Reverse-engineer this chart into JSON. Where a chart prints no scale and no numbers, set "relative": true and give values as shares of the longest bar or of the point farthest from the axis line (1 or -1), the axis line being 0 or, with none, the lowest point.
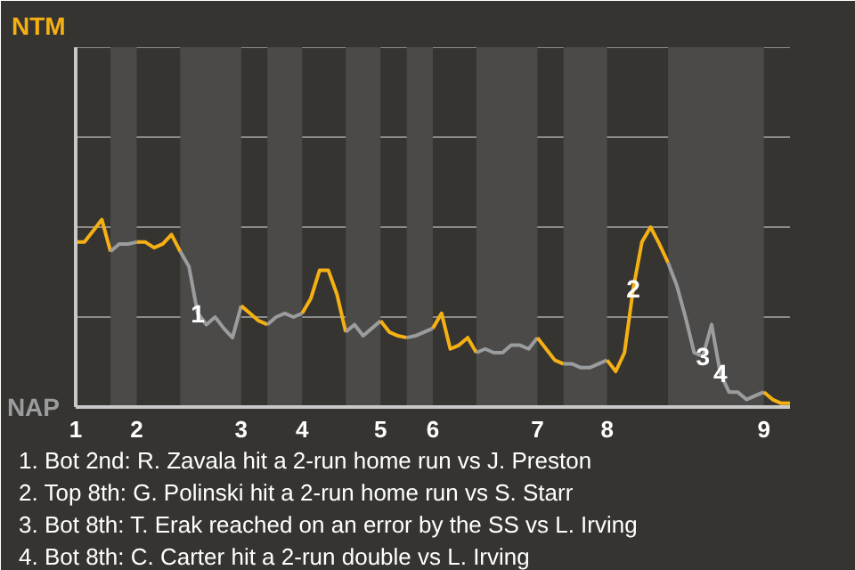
{
  "chart_data": {
    "type": "line",
    "relative": true,
    "categories": [
      "1",
      null,
      null,
      null,
      null,
      null,
      null,
      "2",
      null,
      null,
      null,
      null,
      null,
      null,
      null,
      null,
      null,
      null,
      null,
      "3",
      null,
      null,
      null,
      null,
      null,
      null,
      "4",
      null,
      null,
      null,
      null,
      null,
      null,
      null,
      null,
      "5",
      null,
      null,
      null,
      null,
      null,
      "6",
      null,
      null,
      null,
      null,
      null,
      null,
      null,
      null,
      null,
      null,
      null,
      "7",
      null,
      null,
      null,
      null,
      null,
      null,
      null,
      "8",
      null,
      null,
      null,
      null,
      null,
      null,
      null,
      null,
      null,
      null,
      null,
      null,
      null,
      null,
      null,
      null,
      null,
      "9",
      null,
      null,
      null
    ],
    "marker": "none",
    "line_style": "solid",
    "ref_lines": [
      {
        "axis": "y",
        "value": 0.48,
        "color": "#8c8c8c"
      },
      {
        "axis": "y",
        "value": 0.96,
        "color": "#8c8c8c"
      },
      {
        "axis": "y",
        "value": 1.44,
        "color": "#8c8c8c"
      },
      {
        "axis": "y",
        "value": 1.92,
        "color": "#8c8c8c"
      }
    ],
    "series": [
      {
        "name": "NTM",
        "color": "#f5b014",
        "values": [
          0.88,
          0.88,
          0.94,
          1.0,
          0.83,
          null,
          null,
          null,
          null,
          null,
          null,
          null,
          null,
          null,
          null,
          null,
          null,
          null,
          null,
          null,
          null,
          null,
          null,
          null,
          null,
          null,
          null,
          null,
          null,
          null,
          null,
          null,
          null,
          null,
          null,
          null,
          null,
          null,
          null,
          null,
          null,
          null,
          null,
          null,
          null,
          null,
          null,
          null,
          null,
          null,
          null,
          null,
          null,
          null,
          null,
          null,
          null,
          null,
          null,
          null,
          null,
          null,
          null,
          null,
          null,
          null,
          null,
          null,
          null,
          null,
          null,
          null,
          null,
          null,
          null,
          null,
          null,
          null,
          null,
          null,
          null,
          null,
          null
        ]
      },
      {
        "name": "NAP",
        "color": "#9a9c9e",
        "values": [
          null,
          null,
          null,
          null,
          0.83,
          0.87,
          0.87,
          0.88,
          null,
          null,
          null,
          null,
          null,
          null,
          null,
          null,
          null,
          null,
          null,
          null,
          null,
          null,
          null,
          null,
          null,
          null,
          null,
          null,
          null,
          null,
          null,
          null,
          null,
          null,
          null,
          null,
          null,
          null,
          null,
          null,
          null,
          null,
          null,
          null,
          null,
          null,
          null,
          null,
          null,
          null,
          null,
          null,
          null,
          null,
          null,
          null,
          null,
          null,
          null,
          null,
          null,
          null,
          null,
          null,
          null,
          null,
          null,
          null,
          null,
          null,
          null,
          null,
          null,
          null,
          null,
          null,
          null,
          null,
          null,
          null,
          null,
          null,
          null
        ]
      },
      {
        "color": "#f5b014",
        "values": [
          null,
          null,
          null,
          null,
          null,
          null,
          null,
          0.88,
          0.88,
          0.85,
          0.87,
          0.92,
          0.83,
          null,
          null,
          null,
          null,
          null,
          null,
          null,
          null,
          null,
          null,
          null,
          null,
          null,
          null,
          null,
          null,
          null,
          null,
          null,
          null,
          null,
          null,
          null,
          null,
          null,
          null,
          null,
          null,
          null,
          null,
          null,
          null,
          null,
          null,
          null,
          null,
          null,
          null,
          null,
          null,
          null,
          null,
          null,
          null,
          null,
          null,
          null,
          null,
          null,
          null,
          null,
          null,
          null,
          null,
          null,
          null,
          null,
          null,
          null,
          null,
          null,
          null,
          null,
          null,
          null,
          null,
          null,
          null,
          null,
          null
        ]
      },
      {
        "color": "#9a9c9e",
        "values": [
          null,
          null,
          null,
          null,
          null,
          null,
          null,
          null,
          null,
          null,
          null,
          null,
          0.83,
          0.75,
          0.5,
          0.44,
          0.48,
          0.42,
          0.37,
          0.54,
          null,
          null,
          null,
          null,
          null,
          null,
          null,
          null,
          null,
          null,
          null,
          null,
          null,
          null,
          null,
          null,
          null,
          null,
          null,
          null,
          null,
          null,
          null,
          null,
          null,
          null,
          null,
          null,
          null,
          null,
          null,
          null,
          null,
          null,
          null,
          null,
          null,
          null,
          null,
          null,
          null,
          null,
          null,
          null,
          null,
          null,
          null,
          null,
          null,
          null,
          null,
          null,
          null,
          null,
          null,
          null,
          null,
          null,
          null,
          null,
          null,
          null,
          null
        ]
      },
      {
        "color": "#f5b014",
        "values": [
          null,
          null,
          null,
          null,
          null,
          null,
          null,
          null,
          null,
          null,
          null,
          null,
          null,
          null,
          null,
          null,
          null,
          null,
          null,
          0.54,
          0.5,
          0.46,
          0.44,
          null,
          null,
          null,
          null,
          null,
          null,
          null,
          null,
          null,
          null,
          null,
          null,
          null,
          null,
          null,
          null,
          null,
          null,
          null,
          null,
          null,
          null,
          null,
          null,
          null,
          null,
          null,
          null,
          null,
          null,
          null,
          null,
          null,
          null,
          null,
          null,
          null,
          null,
          null,
          null,
          null,
          null,
          null,
          null,
          null,
          null,
          null,
          null,
          null,
          null,
          null,
          null,
          null,
          null,
          null,
          null,
          null,
          null,
          null,
          null
        ]
      },
      {
        "color": "#9a9c9e",
        "values": [
          null,
          null,
          null,
          null,
          null,
          null,
          null,
          null,
          null,
          null,
          null,
          null,
          null,
          null,
          null,
          null,
          null,
          null,
          null,
          null,
          null,
          null,
          0.44,
          0.48,
          0.5,
          0.48,
          0.5,
          null,
          null,
          null,
          null,
          null,
          null,
          null,
          null,
          null,
          null,
          null,
          null,
          null,
          null,
          null,
          null,
          null,
          null,
          null,
          null,
          null,
          null,
          null,
          null,
          null,
          null,
          null,
          null,
          null,
          null,
          null,
          null,
          null,
          null,
          null,
          null,
          null,
          null,
          null,
          null,
          null,
          null,
          null,
          null,
          null,
          null,
          null,
          null,
          null,
          null,
          null,
          null,
          null,
          null,
          null,
          null
        ]
      },
      {
        "color": "#f5b014",
        "values": [
          null,
          null,
          null,
          null,
          null,
          null,
          null,
          null,
          null,
          null,
          null,
          null,
          null,
          null,
          null,
          null,
          null,
          null,
          null,
          null,
          null,
          null,
          null,
          null,
          null,
          null,
          0.5,
          0.58,
          0.73,
          0.73,
          0.6,
          0.4,
          null,
          null,
          null,
          null,
          null,
          null,
          null,
          null,
          null,
          null,
          null,
          null,
          null,
          null,
          null,
          null,
          null,
          null,
          null,
          null,
          null,
          null,
          null,
          null,
          null,
          null,
          null,
          null,
          null,
          null,
          null,
          null,
          null,
          null,
          null,
          null,
          null,
          null,
          null,
          null,
          null,
          null,
          null,
          null,
          null,
          null,
          null,
          null,
          null,
          null,
          null
        ]
      },
      {
        "color": "#9a9c9e",
        "values": [
          null,
          null,
          null,
          null,
          null,
          null,
          null,
          null,
          null,
          null,
          null,
          null,
          null,
          null,
          null,
          null,
          null,
          null,
          null,
          null,
          null,
          null,
          null,
          null,
          null,
          null,
          null,
          null,
          null,
          null,
          null,
          0.4,
          0.44,
          0.38,
          0.42,
          0.46,
          null,
          null,
          null,
          null,
          null,
          null,
          null,
          null,
          null,
          null,
          null,
          null,
          null,
          null,
          null,
          null,
          null,
          null,
          null,
          null,
          null,
          null,
          null,
          null,
          null,
          null,
          null,
          null,
          null,
          null,
          null,
          null,
          null,
          null,
          null,
          null,
          null,
          null,
          null,
          null,
          null,
          null,
          null,
          null,
          null,
          null,
          null
        ]
      },
      {
        "color": "#f5b014",
        "values": [
          null,
          null,
          null,
          null,
          null,
          null,
          null,
          null,
          null,
          null,
          null,
          null,
          null,
          null,
          null,
          null,
          null,
          null,
          null,
          null,
          null,
          null,
          null,
          null,
          null,
          null,
          null,
          null,
          null,
          null,
          null,
          null,
          null,
          null,
          null,
          0.46,
          0.4,
          0.38,
          0.37,
          null,
          null,
          null,
          null,
          null,
          null,
          null,
          null,
          null,
          null,
          null,
          null,
          null,
          null,
          null,
          null,
          null,
          null,
          null,
          null,
          null,
          null,
          null,
          null,
          null,
          null,
          null,
          null,
          null,
          null,
          null,
          null,
          null,
          null,
          null,
          null,
          null,
          null,
          null,
          null,
          null,
          null,
          null,
          null
        ]
      },
      {
        "color": "#9a9c9e",
        "values": [
          null,
          null,
          null,
          null,
          null,
          null,
          null,
          null,
          null,
          null,
          null,
          null,
          null,
          null,
          null,
          null,
          null,
          null,
          null,
          null,
          null,
          null,
          null,
          null,
          null,
          null,
          null,
          null,
          null,
          null,
          null,
          null,
          null,
          null,
          null,
          null,
          null,
          null,
          0.37,
          0.38,
          0.4,
          0.42,
          null,
          null,
          null,
          null,
          null,
          null,
          null,
          null,
          null,
          null,
          null,
          null,
          null,
          null,
          null,
          null,
          null,
          null,
          null,
          null,
          null,
          null,
          null,
          null,
          null,
          null,
          null,
          null,
          null,
          null,
          null,
          null,
          null,
          null,
          null,
          null,
          null,
          null,
          null,
          null,
          null
        ]
      },
      {
        "color": "#f5b014",
        "values": [
          null,
          null,
          null,
          null,
          null,
          null,
          null,
          null,
          null,
          null,
          null,
          null,
          null,
          null,
          null,
          null,
          null,
          null,
          null,
          null,
          null,
          null,
          null,
          null,
          null,
          null,
          null,
          null,
          null,
          null,
          null,
          null,
          null,
          null,
          null,
          null,
          null,
          null,
          null,
          null,
          null,
          0.42,
          0.5,
          0.31,
          0.33,
          0.37,
          0.29,
          null,
          null,
          null,
          null,
          null,
          null,
          null,
          null,
          null,
          null,
          null,
          null,
          null,
          null,
          null,
          null,
          null,
          null,
          null,
          null,
          null,
          null,
          null,
          null,
          null,
          null,
          null,
          null,
          null,
          null,
          null,
          null,
          null,
          null,
          null,
          null
        ]
      },
      {
        "color": "#9a9c9e",
        "values": [
          null,
          null,
          null,
          null,
          null,
          null,
          null,
          null,
          null,
          null,
          null,
          null,
          null,
          null,
          null,
          null,
          null,
          null,
          null,
          null,
          null,
          null,
          null,
          null,
          null,
          null,
          null,
          null,
          null,
          null,
          null,
          null,
          null,
          null,
          null,
          null,
          null,
          null,
          null,
          null,
          null,
          null,
          null,
          null,
          null,
          null,
          0.29,
          0.31,
          0.29,
          0.29,
          0.33,
          0.33,
          0.31,
          0.37,
          null,
          null,
          null,
          null,
          null,
          null,
          null,
          null,
          null,
          null,
          null,
          null,
          null,
          null,
          null,
          null,
          null,
          null,
          null,
          null,
          null,
          null,
          null,
          null,
          null,
          null,
          null,
          null,
          null
        ]
      },
      {
        "color": "#f5b014",
        "values": [
          null,
          null,
          null,
          null,
          null,
          null,
          null,
          null,
          null,
          null,
          null,
          null,
          null,
          null,
          null,
          null,
          null,
          null,
          null,
          null,
          null,
          null,
          null,
          null,
          null,
          null,
          null,
          null,
          null,
          null,
          null,
          null,
          null,
          null,
          null,
          null,
          null,
          null,
          null,
          null,
          null,
          null,
          null,
          null,
          null,
          null,
          null,
          null,
          null,
          null,
          null,
          null,
          null,
          0.37,
          0.31,
          0.25,
          0.23,
          null,
          null,
          null,
          null,
          null,
          null,
          null,
          null,
          null,
          null,
          null,
          null,
          null,
          null,
          null,
          null,
          null,
          null,
          null,
          null,
          null,
          null,
          null,
          null,
          null,
          null
        ]
      },
      {
        "color": "#9a9c9e",
        "values": [
          null,
          null,
          null,
          null,
          null,
          null,
          null,
          null,
          null,
          null,
          null,
          null,
          null,
          null,
          null,
          null,
          null,
          null,
          null,
          null,
          null,
          null,
          null,
          null,
          null,
          null,
          null,
          null,
          null,
          null,
          null,
          null,
          null,
          null,
          null,
          null,
          null,
          null,
          null,
          null,
          null,
          null,
          null,
          null,
          null,
          null,
          null,
          null,
          null,
          null,
          null,
          null,
          null,
          null,
          null,
          null,
          0.23,
          0.23,
          0.21,
          0.21,
          0.23,
          0.25,
          null,
          null,
          null,
          null,
          null,
          null,
          null,
          null,
          null,
          null,
          null,
          null,
          null,
          null,
          null,
          null,
          null,
          null,
          null,
          null,
          null
        ]
      },
      {
        "color": "#f5b014",
        "values": [
          null,
          null,
          null,
          null,
          null,
          null,
          null,
          null,
          null,
          null,
          null,
          null,
          null,
          null,
          null,
          null,
          null,
          null,
          null,
          null,
          null,
          null,
          null,
          null,
          null,
          null,
          null,
          null,
          null,
          null,
          null,
          null,
          null,
          null,
          null,
          null,
          null,
          null,
          null,
          null,
          null,
          null,
          null,
          null,
          null,
          null,
          null,
          null,
          null,
          null,
          null,
          null,
          null,
          null,
          null,
          null,
          null,
          null,
          null,
          null,
          null,
          0.25,
          0.19,
          0.29,
          0.63,
          0.88,
          0.96,
          0.87,
          0.77,
          null,
          null,
          null,
          null,
          null,
          null,
          null,
          null,
          null,
          null,
          null,
          null,
          null,
          null
        ]
      },
      {
        "color": "#9a9c9e",
        "values": [
          null,
          null,
          null,
          null,
          null,
          null,
          null,
          null,
          null,
          null,
          null,
          null,
          null,
          null,
          null,
          null,
          null,
          null,
          null,
          null,
          null,
          null,
          null,
          null,
          null,
          null,
          null,
          null,
          null,
          null,
          null,
          null,
          null,
          null,
          null,
          null,
          null,
          null,
          null,
          null,
          null,
          null,
          null,
          null,
          null,
          null,
          null,
          null,
          null,
          null,
          null,
          null,
          null,
          null,
          null,
          null,
          null,
          null,
          null,
          null,
          null,
          null,
          null,
          null,
          null,
          null,
          null,
          null,
          0.77,
          0.65,
          0.48,
          0.29,
          0.27,
          0.44,
          0.18,
          0.08,
          0.08,
          0.04,
          0.06,
          0.08,
          null,
          null,
          null
        ]
      },
      {
        "color": "#f5b014",
        "values": [
          null,
          null,
          null,
          null,
          null,
          null,
          null,
          null,
          null,
          null,
          null,
          null,
          null,
          null,
          null,
          null,
          null,
          null,
          null,
          null,
          null,
          null,
          null,
          null,
          null,
          null,
          null,
          null,
          null,
          null,
          null,
          null,
          null,
          null,
          null,
          null,
          null,
          null,
          null,
          null,
          null,
          null,
          null,
          null,
          null,
          null,
          null,
          null,
          null,
          null,
          null,
          null,
          null,
          null,
          null,
          null,
          null,
          null,
          null,
          null,
          null,
          null,
          null,
          null,
          null,
          null,
          null,
          null,
          null,
          null,
          null,
          null,
          null,
          null,
          null,
          null,
          null,
          null,
          null,
          0.08,
          0.04,
          0.02,
          0.02
        ]
      }
    ],
    "annotations": [
      {
        "text": "1",
        "y": 0.5
      },
      {
        "text": "2",
        "y": 0.63
      },
      {
        "text": "3",
        "y": 0.27
      },
      {
        "text": "4",
        "y": 0.18
      },
      "1. Bot 2nd: R. Zavala hit a 2-run home run vs J. Preston",
      "2. Top 8th: G. Polinski hit a 2-run home run vs S. Starr",
      "3. Bot 8th: T. Erak reached on an error by the SS vs L. Irving",
      "4. Bot 8th: C. Carter hit a 2-run double vs L. Irving"
    ]
  }
}
